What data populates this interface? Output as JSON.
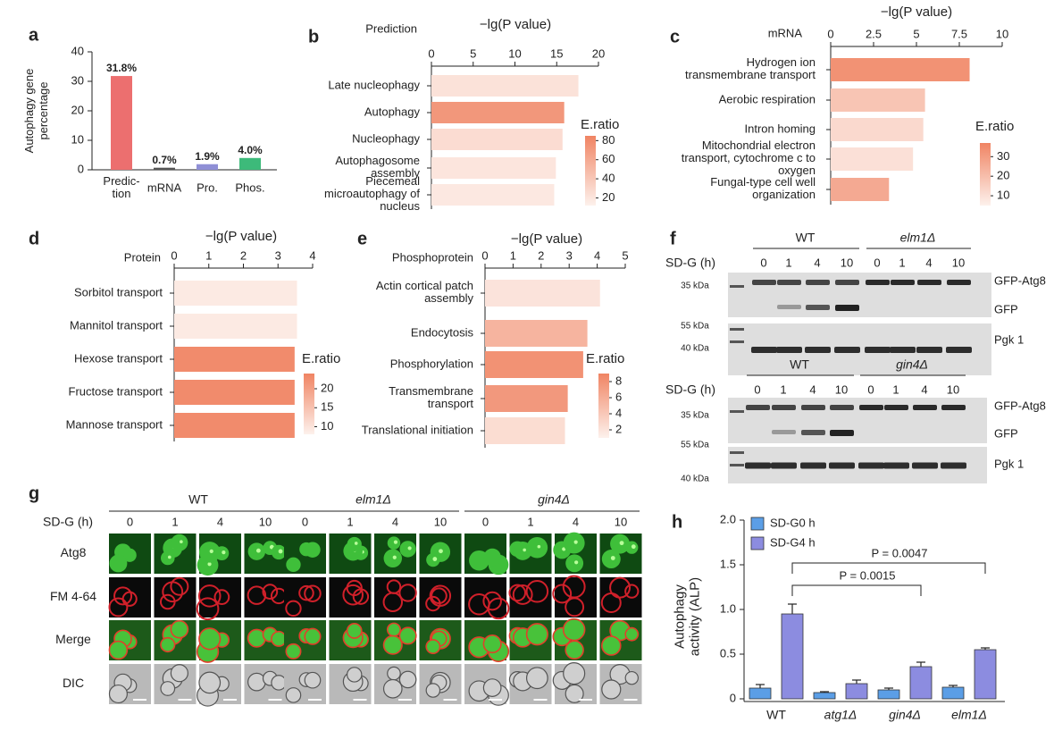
{
  "chart_data": [
    {
      "panel": "a",
      "type": "bar",
      "y_label": [
        "Autophagy gene",
        "percentage"
      ],
      "categories": [
        [
          "Predic-",
          "tion"
        ],
        "mRNA",
        "Pro.",
        "Phos."
      ],
      "values": [
        31.8,
        0.7,
        1.9,
        4.0
      ],
      "value_labels": [
        "31.8%",
        "0.7%",
        "1.9%",
        "4.0%"
      ],
      "colors": [
        "#ec6f6f",
        "#555555",
        "#8f8fd6",
        "#3dba7a"
      ],
      "ylim": [
        0,
        40
      ],
      "yticks": [
        0,
        10,
        20,
        30,
        40
      ]
    },
    {
      "panel": "b",
      "type": "hbar",
      "title": "Prediction",
      "x_label": "−lg(P value)",
      "categories": [
        "Late nucleophagy",
        "Autophagy",
        "Nucleophagy",
        [
          "Autophagosome",
          "assembly"
        ],
        [
          "Piecemeal",
          "microautophagy of",
          "nucleus"
        ]
      ],
      "values": [
        17.6,
        15.9,
        15.7,
        14.9,
        14.7
      ],
      "eratio": [
        22,
        72,
        26,
        20,
        18
      ],
      "xlim": [
        0,
        20
      ],
      "xticks": [
        0,
        5,
        10,
        15,
        20
      ],
      "colorbar_label": "E.ratio",
      "colorbar_lim": [
        12,
        85
      ],
      "colorbar_ticks": [
        20,
        40,
        60,
        80
      ],
      "color_low": "#fdf1ec",
      "color_high": "#f08463"
    },
    {
      "panel": "c",
      "type": "hbar",
      "title": "mRNA",
      "x_label": "−lg(P value)",
      "categories": [
        [
          "Hydrogen ion",
          "transmembrane transport"
        ],
        "Aerobic respiration",
        "Intron homing",
        [
          "Mitochondrial electron",
          "transport, cytochrome c to",
          "oxygen"
        ],
        [
          "Fungal-type cell well",
          "organization"
        ]
      ],
      "values": [
        8.1,
        5.5,
        5.4,
        4.8,
        3.4
      ],
      "eratio": [
        33,
        18,
        12,
        10,
        26
      ],
      "xlim": [
        0,
        10
      ],
      "xticks": [
        0,
        2.5,
        5,
        7.5,
        10
      ],
      "colorbar_label": "E.ratio",
      "colorbar_lim": [
        5,
        37
      ],
      "colorbar_ticks": [
        10,
        20,
        30
      ],
      "color_low": "#fdf1ec",
      "color_high": "#f08463"
    },
    {
      "panel": "d",
      "type": "hbar",
      "title": "Protein",
      "x_label": "−lg(P value)",
      "categories": [
        "Sorbitol transport",
        "Mannitol transport",
        "Hexose transport",
        "Fructose transport",
        "Mannose transport"
      ],
      "values": [
        3.55,
        3.55,
        3.48,
        3.48,
        3.48
      ],
      "eratio": [
        9,
        9,
        23,
        23,
        23
      ],
      "xlim": [
        0,
        4
      ],
      "xticks": [
        0,
        1,
        2,
        3,
        4
      ],
      "colorbar_label": "E.ratio",
      "colorbar_lim": [
        8,
        24
      ],
      "colorbar_ticks": [
        10,
        15,
        20
      ],
      "color_low": "#fdf1ec",
      "color_high": "#f08463"
    },
    {
      "panel": "e",
      "type": "hbar",
      "title": "Phosphoprotein",
      "x_label": "−lg(P value)",
      "categories": [
        [
          "Actin cortical patch",
          "assembly"
        ],
        "Endocytosis",
        "Phosphorylation",
        [
          "Transmembrane",
          "transport"
        ],
        "Translational initiation"
      ],
      "values": [
        4.1,
        3.65,
        3.5,
        2.95,
        2.85
      ],
      "eratio": [
        2,
        5.5,
        8,
        7.5,
        2.5
      ],
      "xlim": [
        0,
        5
      ],
      "xticks": [
        0,
        1,
        2,
        3,
        4,
        5
      ],
      "colorbar_label": "E.ratio",
      "colorbar_lim": [
        1,
        9
      ],
      "colorbar_ticks": [
        2,
        4,
        6,
        8
      ],
      "color_low": "#fdf1ec",
      "color_high": "#f08463"
    },
    {
      "panel": "h",
      "type": "grouped_bar",
      "y_label": [
        "Autophagy",
        "activity (ALP)"
      ],
      "categories": [
        "WT",
        "atg1Δ",
        "gin4Δ",
        "elm1Δ"
      ],
      "series": [
        {
          "name": "SD-G0 h",
          "color": "#5b9ee6",
          "values": [
            0.12,
            0.07,
            0.1,
            0.13
          ],
          "errors": [
            0.04,
            0.01,
            0.02,
            0.02
          ]
        },
        {
          "name": "SD-G4 h",
          "color": "#8c8ce0",
          "values": [
            0.95,
            0.17,
            0.36,
            0.55
          ],
          "errors": [
            0.11,
            0.04,
            0.05,
            0.02
          ]
        }
      ],
      "ylim": [
        0,
        2
      ],
      "yticks": [
        0,
        0.5,
        {
          "value": 1,
          "label": "1.0"
        },
        1.5,
        {
          "value": 2,
          "label": "2.0"
        }
      ],
      "annotations": [
        "P = 0.0015",
        "P = 0.0047"
      ]
    }
  ],
  "blots": {
    "panel": "f",
    "timepoints_label": "SD-G (h)",
    "timepoints": [
      0,
      1,
      4,
      10
    ],
    "markers": [
      "35 kDa",
      "55 kDa",
      "40 kDa"
    ],
    "bands": [
      "GFP-Atg8",
      "GFP",
      "Pgk 1"
    ],
    "groups": [
      [
        "WT",
        "elm1Δ"
      ],
      [
        "WT",
        "gin4Δ"
      ]
    ]
  },
  "micrographs": {
    "panel": "g",
    "timepoints_label": "SD-G (h)",
    "timepoints": [
      0,
      1,
      4,
      10
    ],
    "groups": [
      "WT",
      "elm1Δ",
      "gin4Δ"
    ],
    "rows": [
      "Atg8",
      "FM 4-64",
      "Merge",
      "DIC"
    ]
  }
}
